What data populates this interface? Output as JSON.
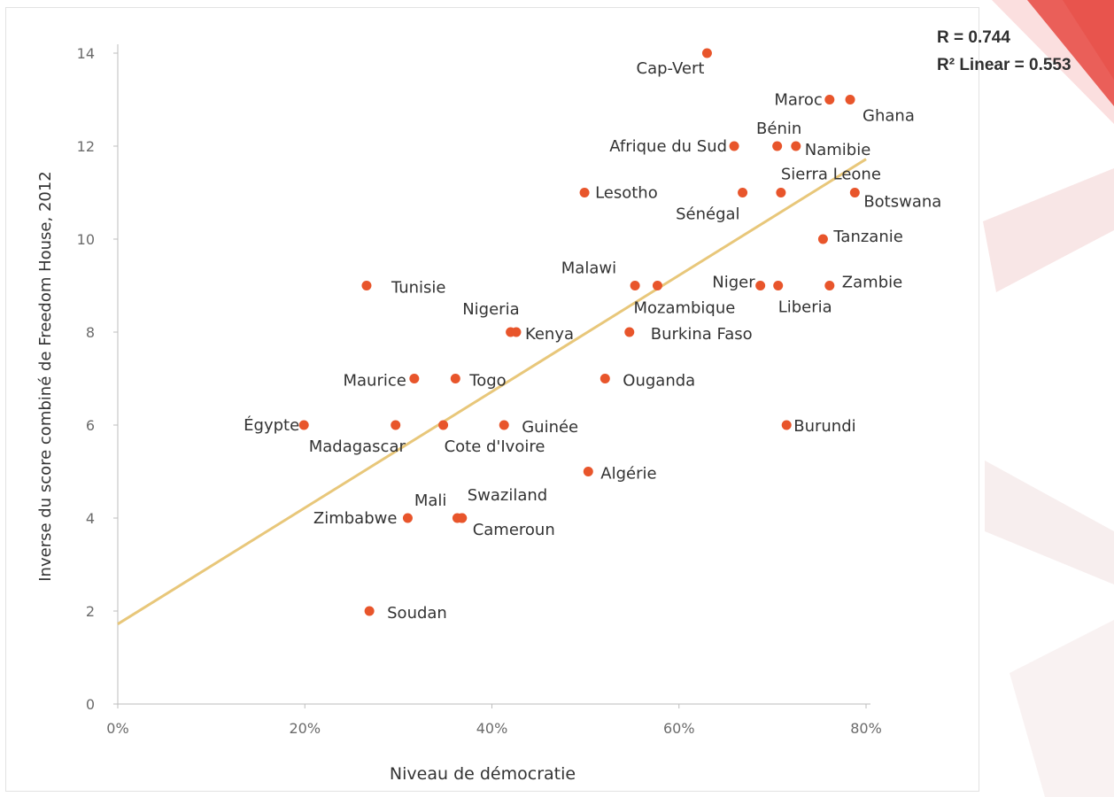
{
  "chart_data": {
    "type": "scatter",
    "xlabel": "Niveau de démocratie",
    "ylabel": "Inverse du score combiné de Freedom House, 2012",
    "xlim": [
      0,
      0.8
    ],
    "ylim": [
      0,
      14
    ],
    "x_ticks": [
      "0%",
      "20%",
      "40%",
      "60%",
      "80%"
    ],
    "y_ticks": [
      "0",
      "2",
      "4",
      "6",
      "8",
      "10",
      "12",
      "14"
    ],
    "grid": false,
    "point_color": "#e8552b",
    "fit_line_color": "#e8c77a",
    "fit_line": {
      "x": [
        0,
        0.8
      ],
      "y": [
        1.72,
        11.72
      ]
    },
    "stats": {
      "r": "R = 0.744",
      "r2": "R² Linear = 0.553"
    },
    "points": [
      {
        "label": "Cap-Vert",
        "x": 0.63,
        "y": 14
      },
      {
        "label": "Maroc",
        "x": 0.761,
        "y": 13
      },
      {
        "label": "Ghana",
        "x": 0.783,
        "y": 13
      },
      {
        "label": "Afrique du Sud",
        "x": 0.659,
        "y": 12
      },
      {
        "label": "Bénin",
        "x": 0.705,
        "y": 12
      },
      {
        "label": "Namibie",
        "x": 0.725,
        "y": 12
      },
      {
        "label": "Lesotho",
        "x": 0.499,
        "y": 11
      },
      {
        "label": "Sénégal",
        "x": 0.668,
        "y": 11
      },
      {
        "label": "Sierra Leone",
        "x": 0.709,
        "y": 11
      },
      {
        "label": "Botswana",
        "x": 0.788,
        "y": 11
      },
      {
        "label": "Tanzanie",
        "x": 0.754,
        "y": 10
      },
      {
        "label": "Tunisie",
        "x": 0.266,
        "y": 9
      },
      {
        "label": "Malawi",
        "x": 0.553,
        "y": 9
      },
      {
        "label": "Mozambique",
        "x": 0.577,
        "y": 9
      },
      {
        "label": "Niger",
        "x": 0.687,
        "y": 9
      },
      {
        "label": "Liberia",
        "x": 0.706,
        "y": 9
      },
      {
        "label": "Zambie",
        "x": 0.761,
        "y": 9
      },
      {
        "label": "Nigeria",
        "x": 0.42,
        "y": 8
      },
      {
        "label": "Kenya",
        "x": 0.426,
        "y": 8
      },
      {
        "label": "Burkina Faso",
        "x": 0.547,
        "y": 8
      },
      {
        "label": "Maurice",
        "x": 0.317,
        "y": 7
      },
      {
        "label": "Togo",
        "x": 0.361,
        "y": 7
      },
      {
        "label": "Ouganda",
        "x": 0.521,
        "y": 7
      },
      {
        "label": "Égypte",
        "x": 0.199,
        "y": 6
      },
      {
        "label": "Madagascar",
        "x": 0.297,
        "y": 6
      },
      {
        "label": "Cote d'Ivoire",
        "x": 0.348,
        "y": 6
      },
      {
        "label": "Guinée",
        "x": 0.413,
        "y": 6
      },
      {
        "label": "Burundi",
        "x": 0.715,
        "y": 6
      },
      {
        "label": "Algérie",
        "x": 0.503,
        "y": 5
      },
      {
        "label": "Zimbabwe",
        "x": 0.31,
        "y": 4
      },
      {
        "label": "Mali",
        "x": 0.363,
        "y": 4
      },
      {
        "label": "Swaziland",
        "x": 0.368,
        "y": 4
      },
      {
        "label": "Cameroun",
        "x": 0.368,
        "y": 4
      },
      {
        "label": "Soudan",
        "x": 0.269,
        "y": 2
      }
    ]
  }
}
